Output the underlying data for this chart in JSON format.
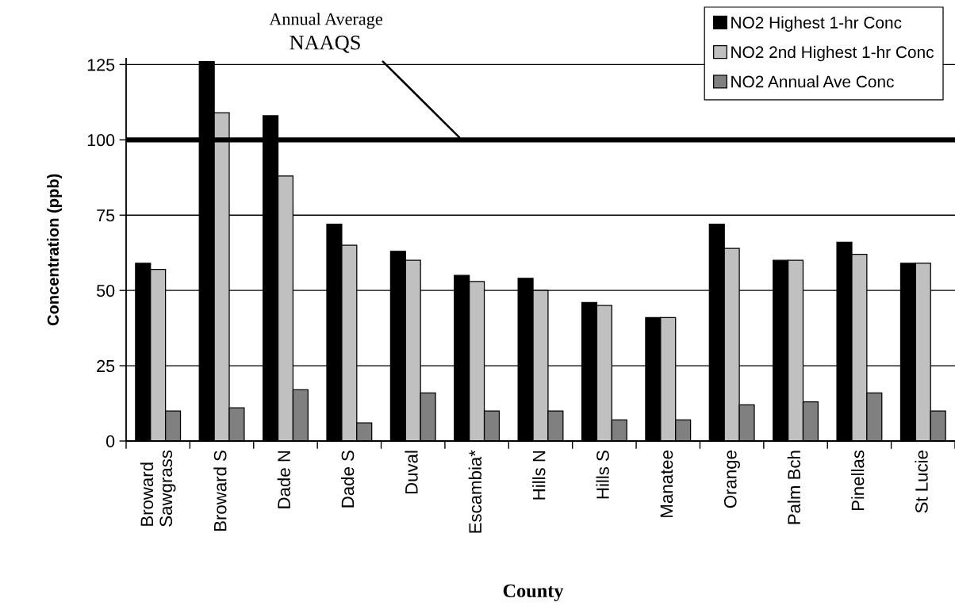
{
  "chart_data": {
    "type": "bar",
    "categories": [
      "Broward\nSawgrass",
      "Broward S",
      "Dade N",
      "Dade S",
      "Duval",
      "Escambia*",
      "Hills N",
      "Hills S",
      "Manatee",
      "Orange",
      "Palm Bch",
      "Pinellas",
      "St Lucie"
    ],
    "series": [
      {
        "name": "NO2 Highest 1-hr Conc",
        "color": "#000000",
        "values": [
          59,
          126,
          108,
          72,
          63,
          55,
          54,
          46,
          41,
          72,
          60,
          66,
          59
        ]
      },
      {
        "name": "NO2 2nd Highest 1-hr Conc",
        "color": "#c0c0c0",
        "values": [
          57,
          109,
          88,
          65,
          60,
          53,
          50,
          45,
          41,
          64,
          60,
          62,
          59
        ]
      },
      {
        "name": "NO2 Annual Ave Conc",
        "color": "#808080",
        "values": [
          10,
          11,
          17,
          6,
          16,
          10,
          10,
          7,
          7,
          12,
          13,
          16,
          10
        ]
      }
    ],
    "xlabel": "County",
    "ylabel": "Concentration (ppb)",
    "ylim": [
      0,
      127
    ],
    "yticks": [
      0,
      25,
      50,
      75,
      100,
      125
    ],
    "grid": "y",
    "legend": "top right",
    "ref_lines": [
      {
        "axis": "y",
        "value": 100,
        "label": "Annual Average\nNAAQS",
        "color": "#000000"
      }
    ]
  }
}
